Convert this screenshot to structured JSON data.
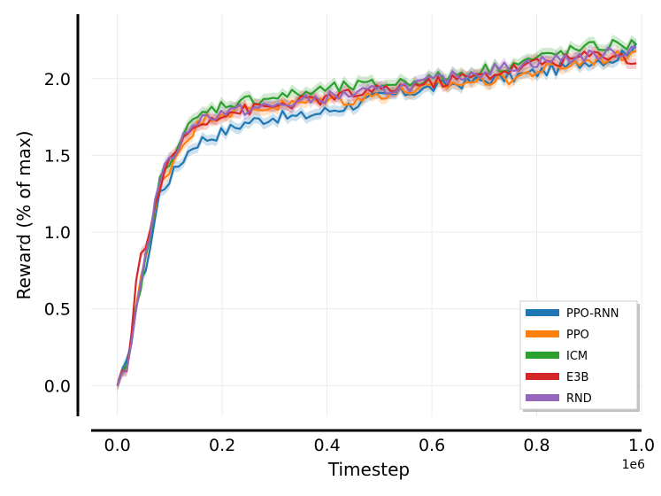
{
  "chart_data": {
    "type": "line",
    "xlabel": "Timestep",
    "ylabel": "Reward (% of max)",
    "x_multiplier_label": "1e6",
    "xlim": [
      -0.05,
      1.0
    ],
    "ylim": [
      -0.2,
      2.42
    ],
    "x_ticks": [
      0.0,
      0.2,
      0.4,
      0.6,
      0.8,
      1.0
    ],
    "x_tick_labels": [
      "0.0",
      "0.2",
      "0.4",
      "0.6",
      "0.8",
      "1.0"
    ],
    "y_ticks": [
      0.0,
      0.5,
      1.0,
      1.5,
      2.0
    ],
    "y_tick_labels": [
      "0.0",
      "0.5",
      "1.0",
      "1.5",
      "2.0"
    ],
    "grid": true,
    "legend_position": "bottom-right",
    "x": [
      0.0,
      0.02,
      0.04,
      0.06,
      0.08,
      0.1,
      0.12,
      0.14,
      0.16,
      0.18,
      0.2,
      0.25,
      0.3,
      0.35,
      0.4,
      0.45,
      0.5,
      0.55,
      0.6,
      0.65,
      0.7,
      0.75,
      0.8,
      0.85,
      0.9,
      0.95,
      0.99
    ],
    "series": [
      {
        "name": "PPO-RNN",
        "color": "#1f77b4",
        "values": [
          0.0,
          0.15,
          0.6,
          0.85,
          1.25,
          1.35,
          1.45,
          1.55,
          1.6,
          1.62,
          1.65,
          1.72,
          1.75,
          1.75,
          1.79,
          1.83,
          1.88,
          1.91,
          1.94,
          1.97,
          1.99,
          2.01,
          2.04,
          2.07,
          2.12,
          2.13,
          2.23
        ]
      },
      {
        "name": "PPO",
        "color": "#ff7f0e",
        "values": [
          0.0,
          0.14,
          0.65,
          0.9,
          1.3,
          1.42,
          1.55,
          1.65,
          1.72,
          1.76,
          1.78,
          1.8,
          1.82,
          1.84,
          1.87,
          1.86,
          1.9,
          1.92,
          1.94,
          1.97,
          1.99,
          2.0,
          2.05,
          2.08,
          2.12,
          2.14,
          2.18
        ]
      },
      {
        "name": "ICM",
        "color": "#2ca02c",
        "values": [
          0.0,
          0.12,
          0.58,
          0.92,
          1.32,
          1.48,
          1.6,
          1.7,
          1.76,
          1.8,
          1.83,
          1.86,
          1.88,
          1.9,
          1.93,
          1.95,
          1.96,
          1.98,
          2.0,
          2.03,
          2.06,
          2.09,
          2.13,
          2.17,
          2.2,
          2.22,
          2.22
        ]
      },
      {
        "name": "E3B",
        "color": "#d62728",
        "values": [
          0.0,
          0.13,
          0.82,
          0.95,
          1.3,
          1.45,
          1.58,
          1.66,
          1.72,
          1.75,
          1.77,
          1.8,
          1.82,
          1.85,
          1.87,
          1.9,
          1.92,
          1.95,
          1.97,
          2.0,
          2.02,
          2.06,
          2.1,
          2.12,
          2.15,
          2.16,
          2.1
        ]
      },
      {
        "name": "RND",
        "color": "#9467bd",
        "values": [
          0.0,
          0.1,
          0.62,
          0.95,
          1.35,
          1.46,
          1.58,
          1.7,
          1.74,
          1.76,
          1.78,
          1.8,
          1.82,
          1.85,
          1.88,
          1.9,
          1.92,
          1.95,
          1.98,
          2.02,
          2.05,
          2.08,
          2.11,
          2.13,
          2.15,
          2.17,
          2.2
        ]
      }
    ]
  }
}
